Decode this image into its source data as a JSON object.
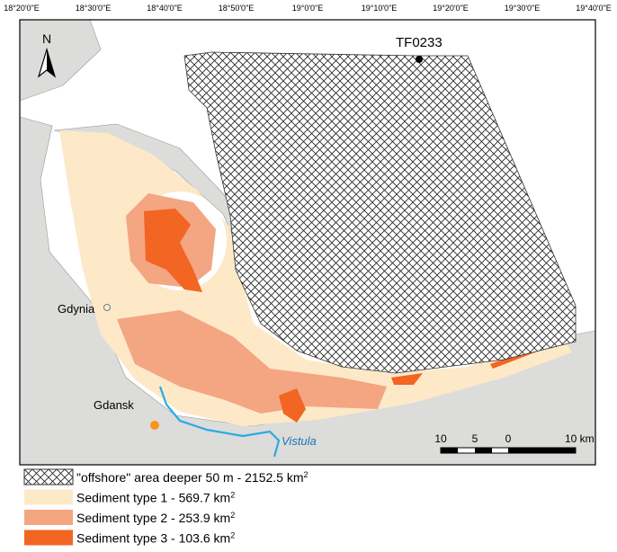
{
  "longitude_labels": [
    "18°20'0\"E",
    "18°30'0\"E",
    "18°40'0\"E",
    "18°50'0\"E",
    "19°0'0\"E",
    "19°10'0\"E",
    "19°20'0\"E",
    "19°30'0\"E",
    "19°40'0\"E"
  ],
  "north_arrow": {
    "label": "N"
  },
  "places": {
    "station": "TF0233",
    "gdynia": "Gdynia",
    "gdansk": "Gdansk",
    "river": "Vistula"
  },
  "scale_bar": {
    "labels": [
      "10",
      "5",
      "0",
      "10 km"
    ]
  },
  "legend": {
    "items": [
      {
        "label": "\"offshore\" area deeper 50 m - 2152.5 km",
        "sup": "2"
      },
      {
        "label": "Sediment type 1 - 569.7 km",
        "sup": "2"
      },
      {
        "label": "Sediment type 2 - 253.9 km",
        "sup": "2"
      },
      {
        "label": "Sediment type 3 - 103.6 km",
        "sup": "2"
      }
    ]
  }
}
